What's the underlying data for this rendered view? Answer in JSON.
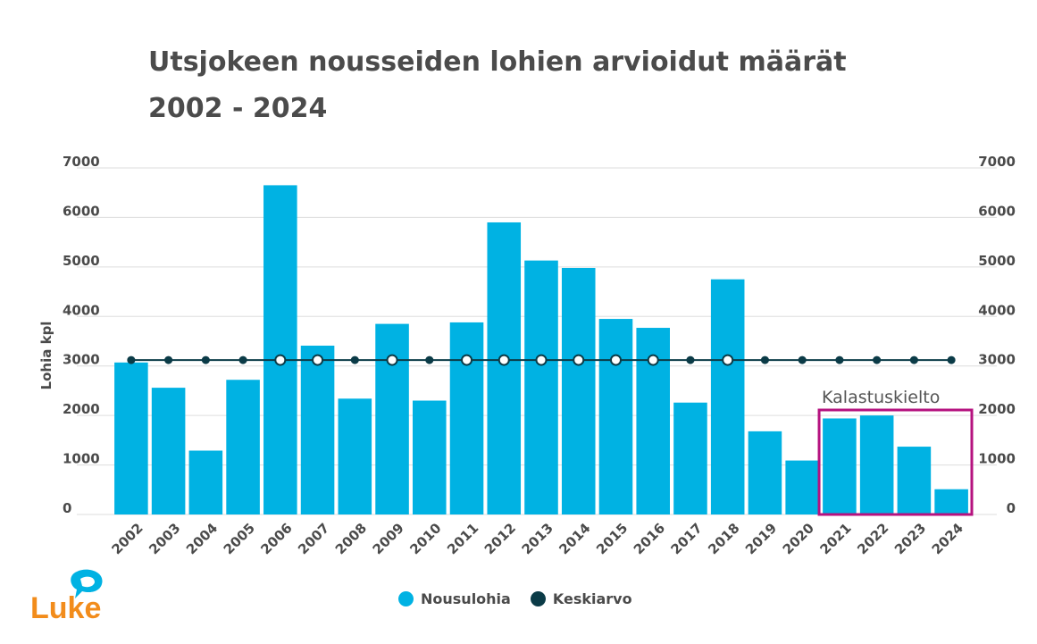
{
  "title_line1": "Utsjokeen nousseiden lohien arvioidut määrät",
  "title_line2": "2002 - 2024",
  "logo_text": "Luke",
  "colors": {
    "bar": "#00b2e3",
    "average": "#0b3b47",
    "highlight_box": "#b5127f",
    "grid": "#dddddd",
    "logo_orange": "#f28c1b",
    "logo_blue": "#00b2e3"
  },
  "chart_data": {
    "type": "bar",
    "categories": [
      "2002",
      "2003",
      "2004",
      "2005",
      "2006",
      "2007",
      "2008",
      "2009",
      "2010",
      "2011",
      "2012",
      "2013",
      "2014",
      "2015",
      "2016",
      "2017",
      "2018",
      "2019",
      "2020",
      "2021",
      "2022",
      "2023",
      "2024"
    ],
    "series": [
      {
        "name": "Nousulohia",
        "type": "bar",
        "values": [
          3070,
          2560,
          1290,
          2720,
          6650,
          3410,
          2340,
          3850,
          2300,
          3880,
          5900,
          5130,
          4980,
          3950,
          3770,
          2260,
          4750,
          1680,
          1090,
          1940,
          2000,
          1370,
          510
        ]
      },
      {
        "name": "Keskiarvo",
        "type": "line",
        "values": [
          3120,
          3120,
          3120,
          3120,
          3120,
          3120,
          3120,
          3120,
          3120,
          3120,
          3120,
          3120,
          3120,
          3120,
          3120,
          3120,
          3120,
          3120,
          3120,
          3120,
          3120,
          3120,
          3120
        ],
        "marker_hollow": [
          false,
          false,
          false,
          false,
          true,
          true,
          false,
          true,
          false,
          true,
          true,
          true,
          true,
          true,
          true,
          false,
          true,
          false,
          false,
          false,
          false,
          false,
          false
        ]
      }
    ],
    "ylabel": "Lohia kpl",
    "ylim": [
      0,
      7000
    ],
    "yticks": [
      0,
      1000,
      2000,
      3000,
      4000,
      5000,
      6000,
      7000
    ],
    "grid": true,
    "legend_position": "bottom",
    "annotation": {
      "text": "Kalastuskielto",
      "from": "2021",
      "to": "2024"
    }
  }
}
